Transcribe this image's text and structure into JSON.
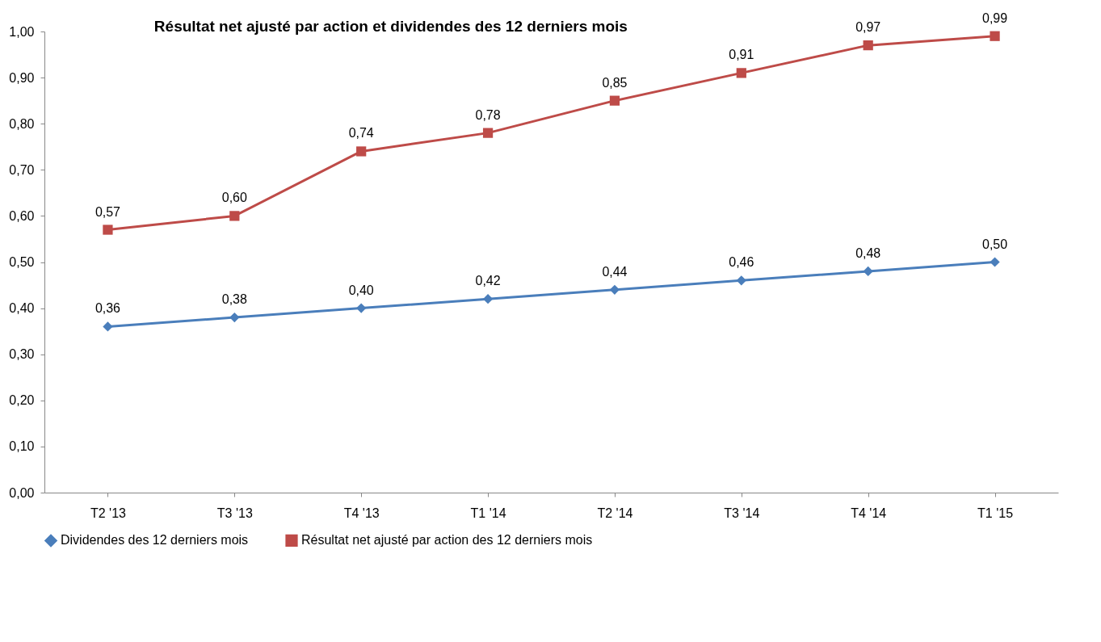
{
  "chart_data": {
    "type": "line",
    "title": "Résultat net ajusté par action et dividendes des 12 derniers mois",
    "categories": [
      "T2  '13",
      "T3  '13",
      "T4  '13",
      "T1  '14",
      "T2  '14",
      "T3  '14",
      "T4  '14",
      "T1  '15"
    ],
    "series": [
      {
        "name": "Dividendes des 12 derniers mois",
        "color": "#4a7ebb",
        "marker": "diamond",
        "values": [
          0.36,
          0.38,
          0.4,
          0.42,
          0.44,
          0.46,
          0.48,
          0.5
        ],
        "value_labels": [
          "0,36",
          "0,38",
          "0,40",
          "0,42",
          "0,44",
          "0,46",
          "0,48",
          "0,50"
        ]
      },
      {
        "name": "Résultat net ajusté par action des 12 derniers mois",
        "color": "#be4b48",
        "marker": "square",
        "values": [
          0.57,
          0.6,
          0.74,
          0.78,
          0.85,
          0.91,
          0.97,
          0.99
        ],
        "value_labels": [
          "0,57",
          "0,60",
          "0,74",
          "0,78",
          "0,85",
          "0,91",
          "0,97",
          "0,99"
        ]
      }
    ],
    "ylim": [
      0,
      1
    ],
    "yticks": [
      {
        "value": 0,
        "label": "0,00"
      },
      {
        "value": 0.1,
        "label": "0,10"
      },
      {
        "value": 0.2,
        "label": "0,20"
      },
      {
        "value": 0.3,
        "label": "0,30"
      },
      {
        "value": 0.4,
        "label": "0,40"
      },
      {
        "value": 0.5,
        "label": "0,50"
      },
      {
        "value": 0.6,
        "label": "0,60"
      },
      {
        "value": 0.7,
        "label": "0,70"
      },
      {
        "value": 0.8,
        "label": "0,80"
      },
      {
        "value": 0.9,
        "label": "0,90"
      },
      {
        "value": 1,
        "label": "1,00"
      }
    ],
    "legend": "bottom",
    "line_style": "solid"
  }
}
